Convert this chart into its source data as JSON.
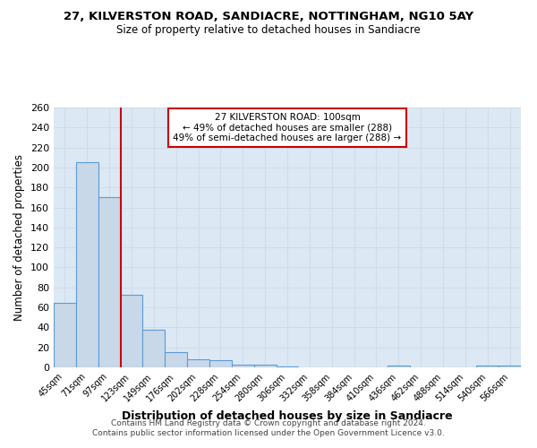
{
  "title": "27, KILVERSTON ROAD, SANDIACRE, NOTTINGHAM, NG10 5AY",
  "subtitle": "Size of property relative to detached houses in Sandiacre",
  "xlabel": "Distribution of detached houses by size in Sandiacre",
  "ylabel": "Number of detached properties",
  "categories": [
    "45sqm",
    "71sqm",
    "97sqm",
    "123sqm",
    "149sqm",
    "176sqm",
    "202sqm",
    "228sqm",
    "254sqm",
    "280sqm",
    "306sqm",
    "332sqm",
    "358sqm",
    "384sqm",
    "410sqm",
    "436sqm",
    "462sqm",
    "488sqm",
    "514sqm",
    "540sqm",
    "566sqm"
  ],
  "values": [
    65,
    205,
    170,
    73,
    38,
    15,
    8,
    7,
    3,
    3,
    1,
    0,
    0,
    0,
    0,
    2,
    0,
    0,
    0,
    2,
    2
  ],
  "bar_color": "#c8d8e8",
  "bar_edge_color": "#5b9bd5",
  "bar_edge_width": 0.8,
  "grid_color": "#d0dce8",
  "bg_color": "#dce9f5",
  "property_line_color": "#cc0000",
  "annotation_line1": "27 KILVERSTON ROAD: 100sqm",
  "annotation_line2": "← 49% of detached houses are smaller (288)",
  "annotation_line3": "49% of semi-detached houses are larger (288) →",
  "annotation_box_color": "#ffffff",
  "annotation_box_edge": "#cc0000",
  "footer": "Contains HM Land Registry data © Crown copyright and database right 2024.\nContains public sector information licensed under the Open Government Licence v3.0.",
  "ylim": [
    0,
    260
  ],
  "yticks": [
    0,
    20,
    40,
    60,
    80,
    100,
    120,
    140,
    160,
    180,
    200,
    220,
    240,
    260
  ]
}
